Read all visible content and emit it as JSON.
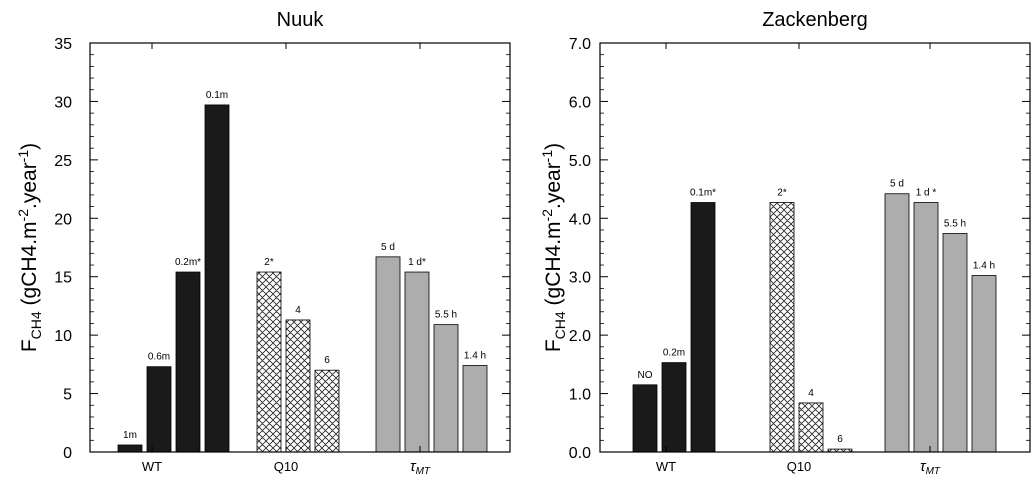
{
  "colors": {
    "WT": "#1a1a1a",
    "Q10": "hatch-crosshatch",
    "tau": "#adadad"
  },
  "chart_data": [
    {
      "type": "bar",
      "title": "Nuuk",
      "ylabel": "F",
      "ylabel_sub": "CH4",
      "ylabel_rest": "  (gCH4.m",
      "ylabel_exp1": "-2",
      "ylabel_mid": ".year",
      "ylabel_exp2": "-1",
      "ylabel_end": ")",
      "ylim": [
        0,
        35
      ],
      "yticks": [
        "0",
        "5",
        "10",
        "15",
        "20",
        "25",
        "30",
        "35"
      ],
      "groups": [
        {
          "name": "WT",
          "style": "WT",
          "bars": [
            {
              "label": "1m",
              "value": 0.6
            },
            {
              "label": "0.6m",
              "value": 7.3
            },
            {
              "label": "0.2m*",
              "value": 15.4
            },
            {
              "label": "0.1m",
              "value": 29.7
            }
          ]
        },
        {
          "name": "Q10",
          "style": "Q10",
          "bars": [
            {
              "label": "2*",
              "value": 15.4
            },
            {
              "label": "4",
              "value": 11.3
            },
            {
              "label": "6",
              "value": 7.0
            }
          ]
        },
        {
          "name": "τ",
          "name_sub": "MT",
          "style": "tau",
          "bars": [
            {
              "label": "5 d",
              "value": 16.7
            },
            {
              "label": "1 d*",
              "value": 15.4
            },
            {
              "label": "5.5 h",
              "value": 10.9
            },
            {
              "label": "1.4 h",
              "value": 7.4
            }
          ]
        }
      ]
    },
    {
      "type": "bar",
      "title": "Zackenberg",
      "ylabel": "F",
      "ylabel_sub": "CH4",
      "ylabel_rest": "  (gCH4.m",
      "ylabel_exp1": "-2",
      "ylabel_mid": ".year",
      "ylabel_exp2": "-1",
      "ylabel_end": ")",
      "ylim": [
        0,
        7
      ],
      "yticks": [
        "0.0",
        "1.0",
        "2.0",
        "3.0",
        "4.0",
        "5.0",
        "6.0",
        "7.0"
      ],
      "groups": [
        {
          "name": "WT",
          "style": "WT",
          "bars": [
            {
              "label": "NO",
              "value": 1.15
            },
            {
              "label": "0.2m",
              "value": 1.53
            },
            {
              "label": "0.1m*",
              "value": 4.27
            }
          ]
        },
        {
          "name": "Q10",
          "style": "Q10",
          "bars": [
            {
              "label": "2*",
              "value": 4.27
            },
            {
              "label": "4",
              "value": 0.84
            },
            {
              "label": "6",
              "value": 0.05
            }
          ]
        },
        {
          "name": "τ",
          "name_sub": "MT",
          "style": "tau",
          "bars": [
            {
              "label": "5 d",
              "value": 4.42
            },
            {
              "label": "1 d *",
              "value": 4.27
            },
            {
              "label": "5.5 h",
              "value": 3.74
            },
            {
              "label": "1.4 h",
              "value": 3.02
            }
          ]
        }
      ]
    }
  ]
}
